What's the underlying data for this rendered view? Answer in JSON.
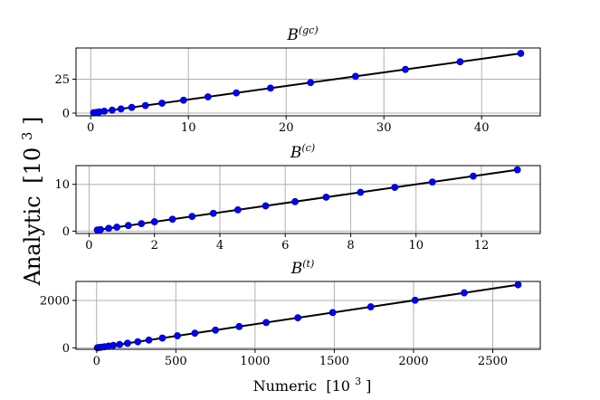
{
  "chart_data": [
    {
      "type": "scatter",
      "title": "B",
      "title_superscript": "(gc)",
      "xlim": [
        -1.5,
        46
      ],
      "ylim": [
        -2,
        48
      ],
      "xticks": [
        0,
        10,
        20,
        30,
        40
      ],
      "yticks": [
        0,
        25
      ],
      "grid": true,
      "series": [
        {
          "x": [
            0.3,
            0.6,
            0.9,
            1.4,
            2.2,
            3.1,
            4.2,
            5.6,
            7.3,
            9.5,
            12.0,
            14.9,
            18.4,
            22.5,
            27.1,
            32.2,
            37.8,
            44.0
          ],
          "y": [
            0.3,
            0.6,
            0.9,
            1.4,
            2.2,
            3.1,
            4.2,
            5.6,
            7.3,
            9.5,
            12.0,
            14.9,
            18.4,
            22.5,
            27.1,
            32.2,
            37.8,
            44.0
          ]
        }
      ],
      "fit_line": {
        "x": [
          0.3,
          44.0
        ],
        "y": [
          0.3,
          44.0
        ]
      }
    },
    {
      "type": "scatter",
      "title": "B",
      "title_superscript": "(c)",
      "xlim": [
        -0.4,
        13.8
      ],
      "ylim": [
        -0.5,
        14
      ],
      "xticks": [
        0,
        2,
        4,
        6,
        8,
        10,
        12
      ],
      "yticks": [
        0,
        10
      ],
      "grid": true,
      "series": [
        {
          "x": [
            0.25,
            0.35,
            0.6,
            0.85,
            1.2,
            1.6,
            2.0,
            2.55,
            3.15,
            3.8,
            4.55,
            5.4,
            6.3,
            7.25,
            8.3,
            9.35,
            10.5,
            11.75,
            13.1
          ],
          "y": [
            0.25,
            0.35,
            0.6,
            0.85,
            1.2,
            1.6,
            2.0,
            2.55,
            3.15,
            3.8,
            4.55,
            5.4,
            6.3,
            7.25,
            8.3,
            9.35,
            10.5,
            11.75,
            13.1
          ]
        }
      ],
      "fit_line": {
        "x": [
          0.25,
          13.1
        ],
        "y": [
          0.25,
          13.1
        ]
      }
    },
    {
      "type": "scatter",
      "title": "B",
      "title_superscript": "(t)",
      "xlim": [
        -130,
        2800
      ],
      "ylim": [
        -60,
        2800
      ],
      "xticks": [
        0,
        500,
        1000,
        1500,
        2000,
        2500
      ],
      "yticks": [
        0,
        2000
      ],
      "grid": true,
      "series": [
        {
          "x": [
            5,
            15,
            30,
            50,
            75,
            105,
            145,
            195,
            260,
            330,
            415,
            510,
            620,
            750,
            900,
            1070,
            1270,
            1490,
            1730,
            2010,
            2320,
            2660
          ],
          "y": [
            5,
            15,
            30,
            50,
            75,
            105,
            145,
            195,
            260,
            330,
            415,
            510,
            620,
            750,
            900,
            1070,
            1270,
            1490,
            1730,
            2010,
            2320,
            2660
          ]
        }
      ],
      "fit_line": {
        "x": [
          5,
          2660
        ],
        "y": [
          5,
          2660
        ]
      }
    }
  ],
  "labels": {
    "xlabel_main": "Numeric",
    "xlabel_unit": "[10",
    "xlabel_exp": "3",
    "xlabel_close": "]",
    "ylabel_main": "Analytic",
    "ylabel_unit": "[10",
    "ylabel_exp": "3",
    "ylabel_close": "]"
  },
  "colors": {
    "points": "#0000ff",
    "line": "#000000",
    "grid": "#b0b0b0"
  }
}
